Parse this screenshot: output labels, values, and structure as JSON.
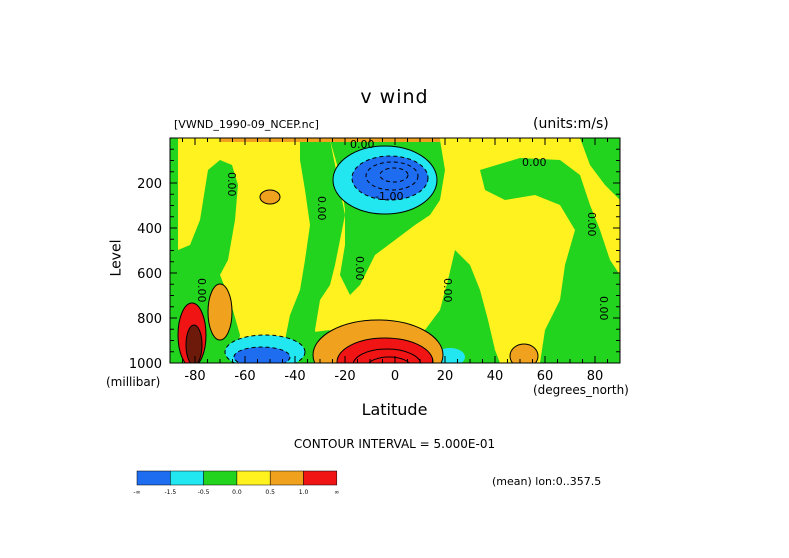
{
  "header": {
    "title": "v wind",
    "filename": "[VWND_1990-09_NCEP.nc]",
    "units": "(units:m/s)"
  },
  "footer": {
    "contour_interval": "CONTOUR INTERVAL = 5.000E-01",
    "mean": "(mean) lon:0..357.5"
  },
  "chart_data": {
    "type": "heatmap",
    "title": "v wind",
    "xlabel": "Latitude",
    "xunit": "(degrees_north)",
    "ylabel": "Level",
    "yunit": "(millibar)",
    "xlim": [
      -90,
      90
    ],
    "ylim": [
      1000,
      0
    ],
    "x_ticks": [
      -80,
      -60,
      -40,
      -20,
      0,
      20,
      40,
      60,
      80
    ],
    "y_ticks": [
      200,
      400,
      600,
      800,
      1000
    ],
    "contour_interval": 0.5,
    "contour_labels": [
      "0.00",
      "-1.00"
    ],
    "colorbar": {
      "colors": [
        "#1e6cf0",
        "#22e6f0",
        "#22d41e",
        "#fff21e",
        "#f0a21e",
        "#f01414"
      ],
      "tick_labels": [
        "-∞",
        "-1.5",
        "-0.5",
        "0.0",
        "0.5",
        "1.0",
        "∞"
      ]
    }
  }
}
